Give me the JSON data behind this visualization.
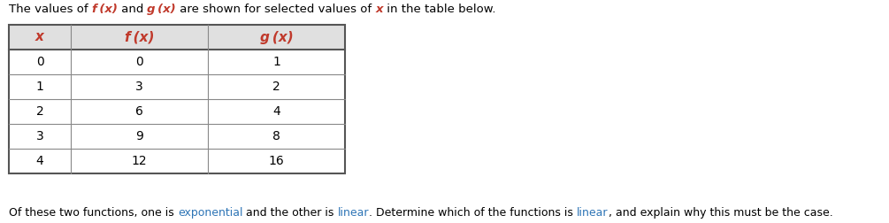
{
  "title_parts": [
    {
      "text": "The values of ",
      "color": "#000000",
      "italic": false,
      "bold": false
    },
    {
      "text": "f (x)",
      "color": "#c0392b",
      "italic": true,
      "bold": true
    },
    {
      "text": " and ",
      "color": "#000000",
      "italic": false,
      "bold": false
    },
    {
      "text": "g (x)",
      "color": "#c0392b",
      "italic": true,
      "bold": true
    },
    {
      "text": " are shown for selected values of ",
      "color": "#000000",
      "italic": false,
      "bold": false
    },
    {
      "text": "x",
      "color": "#c0392b",
      "italic": true,
      "bold": true
    },
    {
      "text": " in the table below.",
      "color": "#000000",
      "italic": false,
      "bold": false
    }
  ],
  "footer_parts": [
    {
      "text": "Of these two functions, one is ",
      "color": "#000000"
    },
    {
      "text": "exponential",
      "color": "#2e75b6"
    },
    {
      "text": " and the other is ",
      "color": "#000000"
    },
    {
      "text": "linear",
      "color": "#2e75b6"
    },
    {
      "text": ". Determine which of the functions is ",
      "color": "#000000"
    },
    {
      "text": "linear",
      "color": "#2e75b6"
    },
    {
      "text": ", and explain why this must be the case.",
      "color": "#000000"
    }
  ],
  "col_headers": [
    "x",
    "f (x)",
    "g (x)"
  ],
  "x_vals": [
    0,
    1,
    2,
    3,
    4
  ],
  "f_vals": [
    0,
    3,
    6,
    9,
    12
  ],
  "g_vals": [
    1,
    2,
    4,
    8,
    16
  ],
  "header_bg": "#e0e0e0",
  "border_color": "#888888",
  "header_font_color": "#c0392b",
  "data_font_color": "#000000",
  "figwidth": 10.05,
  "figheight": 2.52,
  "dpi": 100
}
